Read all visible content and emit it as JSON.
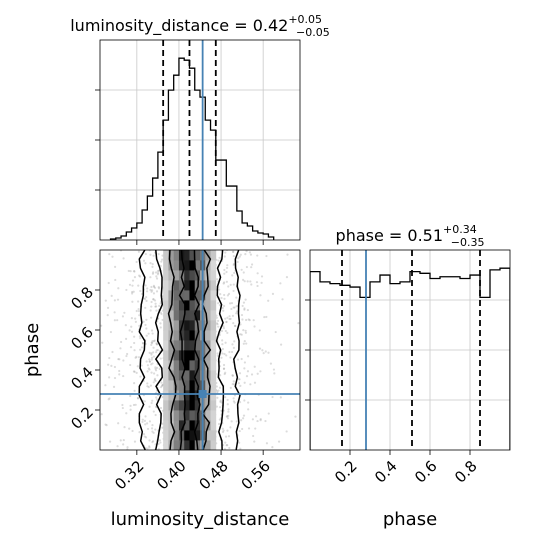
{
  "chart_data": {
    "type": "corner",
    "parameters": [
      "luminosity_distance",
      "phase"
    ],
    "truth": {
      "luminosity_distance": 0.445,
      "phase": 0.28
    },
    "panels": [
      {
        "id": "hist-luminosity_distance",
        "type": "histogram",
        "title": {
          "prefix": "luminosity_distance = ",
          "value": "0.42",
          "plus": "+0.05",
          "minus": "−0.05"
        },
        "xlim": [
          0.25,
          0.63
        ],
        "quantiles": [
          0.37,
          0.42,
          0.47
        ],
        "truth": 0.445,
        "bin_edges": [
          0.27,
          0.28,
          0.29,
          0.3,
          0.31,
          0.32,
          0.33,
          0.34,
          0.35,
          0.36,
          0.37,
          0.38,
          0.39,
          0.4,
          0.41,
          0.42,
          0.43,
          0.44,
          0.45,
          0.46,
          0.47,
          0.48,
          0.49,
          0.5,
          0.51,
          0.52,
          0.53,
          0.54,
          0.55,
          0.56,
          0.57,
          0.58
        ],
        "counts": [
          1,
          2,
          4,
          8,
          12,
          17,
          30,
          44,
          62,
          88,
          120,
          150,
          165,
          182,
          180,
          172,
          150,
          143,
          120,
          110,
          80,
          80,
          54,
          54,
          29,
          17,
          14,
          9,
          7,
          6,
          3
        ]
      },
      {
        "id": "hist-phase",
        "type": "histogram",
        "title": {
          "prefix": "phase = ",
          "value": "0.51",
          "plus": "+0.34",
          "minus": "−0.35"
        },
        "xlim": [
          0.0,
          1.0
        ],
        "quantiles": [
          0.16,
          0.51,
          0.85
        ],
        "truth": 0.28,
        "xticks": [
          "0.2",
          "0.4",
          "0.6",
          "0.8"
        ],
        "bin_edges": [
          0.0,
          0.05,
          0.1,
          0.15,
          0.2,
          0.25,
          0.3,
          0.35,
          0.4,
          0.45,
          0.5,
          0.55,
          0.6,
          0.65,
          0.7,
          0.75,
          0.8,
          0.85,
          0.9,
          0.95,
          1.0
        ],
        "counts": [
          104,
          98,
          97,
          96,
          95,
          89,
          98,
          102,
          97,
          98,
          104,
          103,
          100,
          101,
          101,
          100,
          102,
          89,
          105,
          106
        ]
      },
      {
        "id": "density-2d",
        "type": "density2d",
        "xlim": [
          0.25,
          0.63
        ],
        "ylim": [
          0.0,
          1.0
        ],
        "xlabel": "luminosity_distance",
        "ylabel": "phase",
        "xticks": [
          "0.32",
          "0.40",
          "0.48",
          "0.56"
        ],
        "yticks": [
          "0.2",
          "0.4",
          "0.6",
          "0.8"
        ],
        "truth": [
          0.445,
          0.28
        ],
        "sample_count": 1400,
        "sample_center_x": 0.42,
        "sample_sigma_x": 0.05
      }
    ]
  }
}
